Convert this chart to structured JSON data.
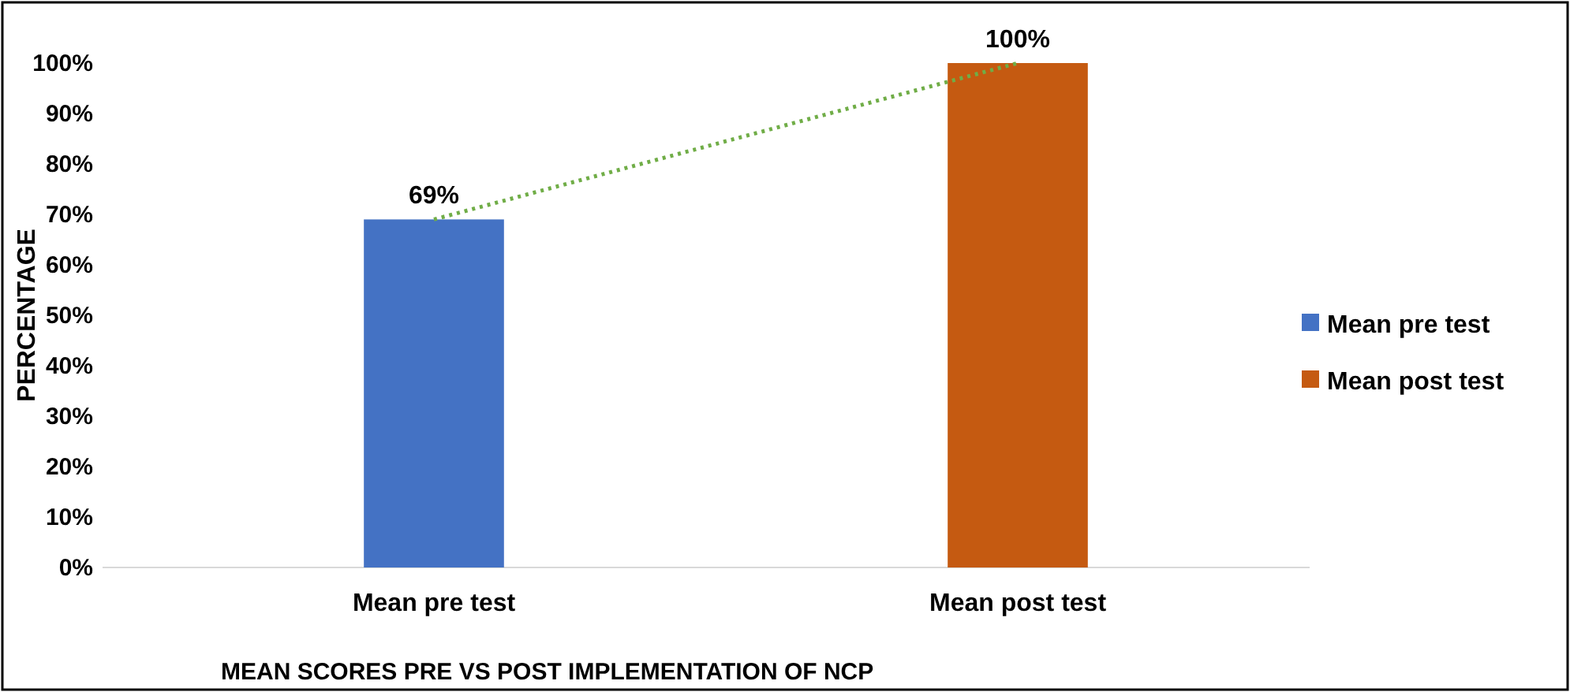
{
  "chart_data": {
    "type": "bar",
    "xlabel": "MEAN SCORES PRE VS POST IMPLEMENTATION OF NCP",
    "ylabel": "PERCENTAGE",
    "categories": [
      "Mean pre test",
      "Mean post test"
    ],
    "series": [
      {
        "name": "Mean pre test",
        "color": "#4472c4",
        "values": [
          69,
          null
        ],
        "value_labels": [
          "69%",
          null
        ]
      },
      {
        "name": "Mean post test",
        "color": "#c55a11",
        "values": [
          null,
          100
        ],
        "value_labels": [
          null,
          "100%"
        ]
      },
      {
        "type": "line",
        "color": "#70ad47",
        "line_style": "dotted",
        "values": [
          69,
          100
        ]
      }
    ],
    "ylim": [
      0,
      100
    ],
    "yticks": [
      {
        "value": 0,
        "label": "0%"
      },
      {
        "value": 10,
        "label": "10%"
      },
      {
        "value": 20,
        "label": "20%"
      },
      {
        "value": 30,
        "label": "30%"
      },
      {
        "value": 40,
        "label": "40%"
      },
      {
        "value": 50,
        "label": "50%"
      },
      {
        "value": 60,
        "label": "60%"
      },
      {
        "value": 70,
        "label": "70%"
      },
      {
        "value": 80,
        "label": "80%"
      },
      {
        "value": 90,
        "label": "90%"
      },
      {
        "value": 100,
        "label": "100%"
      }
    ],
    "grid": false,
    "legend": "right"
  }
}
